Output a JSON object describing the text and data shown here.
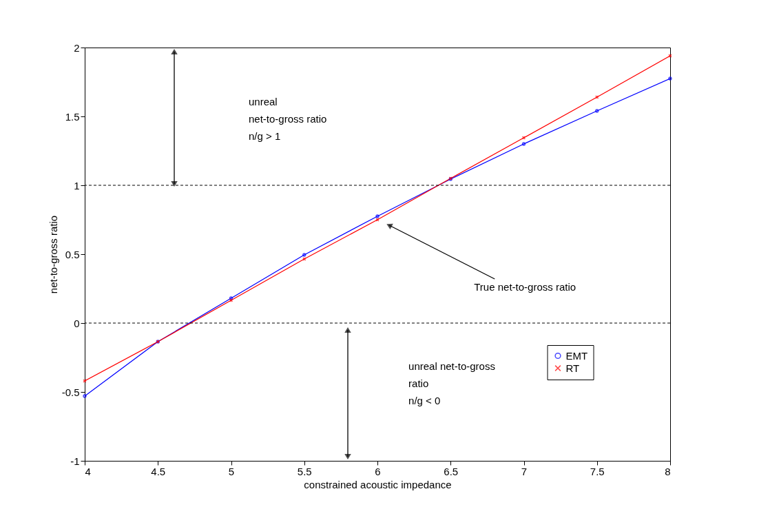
{
  "chart_data": {
    "type": "line",
    "xlabel": "constrained acoustic impedance",
    "ylabel": "net-to-gross ratio",
    "x": [
      4,
      4.5,
      5,
      5.5,
      6,
      6.5,
      7,
      7.5,
      8
    ],
    "series": [
      {
        "name": "EMT",
        "color": "#0000ff",
        "marker": "circle",
        "values": [
          -0.53,
          -0.135,
          0.18,
          0.495,
          0.775,
          1.045,
          1.3,
          1.54,
          1.775
        ]
      },
      {
        "name": "RT",
        "color": "#ff0000",
        "marker": "cross",
        "values": [
          -0.42,
          -0.135,
          0.165,
          0.465,
          0.75,
          1.05,
          1.345,
          1.64,
          1.94
        ]
      }
    ],
    "xlim": [
      4,
      8
    ],
    "xticks": [
      4,
      4.5,
      5,
      5.5,
      6,
      6.5,
      7,
      7.5,
      8
    ],
    "ylim": [
      -1,
      2
    ],
    "yticks": [
      -1,
      -0.5,
      0,
      0.5,
      1,
      1.5,
      2
    ],
    "ref_lines": [
      {
        "axis": "y",
        "value": 1,
        "color": "#000000",
        "line_style": "dashed"
      },
      {
        "axis": "y",
        "value": 0,
        "color": "#000000",
        "line_style": "dashed"
      }
    ],
    "annotations": [
      "unreal\nnet-to-gross ratio\nn/g > 1",
      "True net-to-gross ratio",
      "unreal net-to-gross\nratio\nn/g < 0"
    ],
    "grid": false,
    "legend": "bottom right",
    "line_style": "solid"
  }
}
